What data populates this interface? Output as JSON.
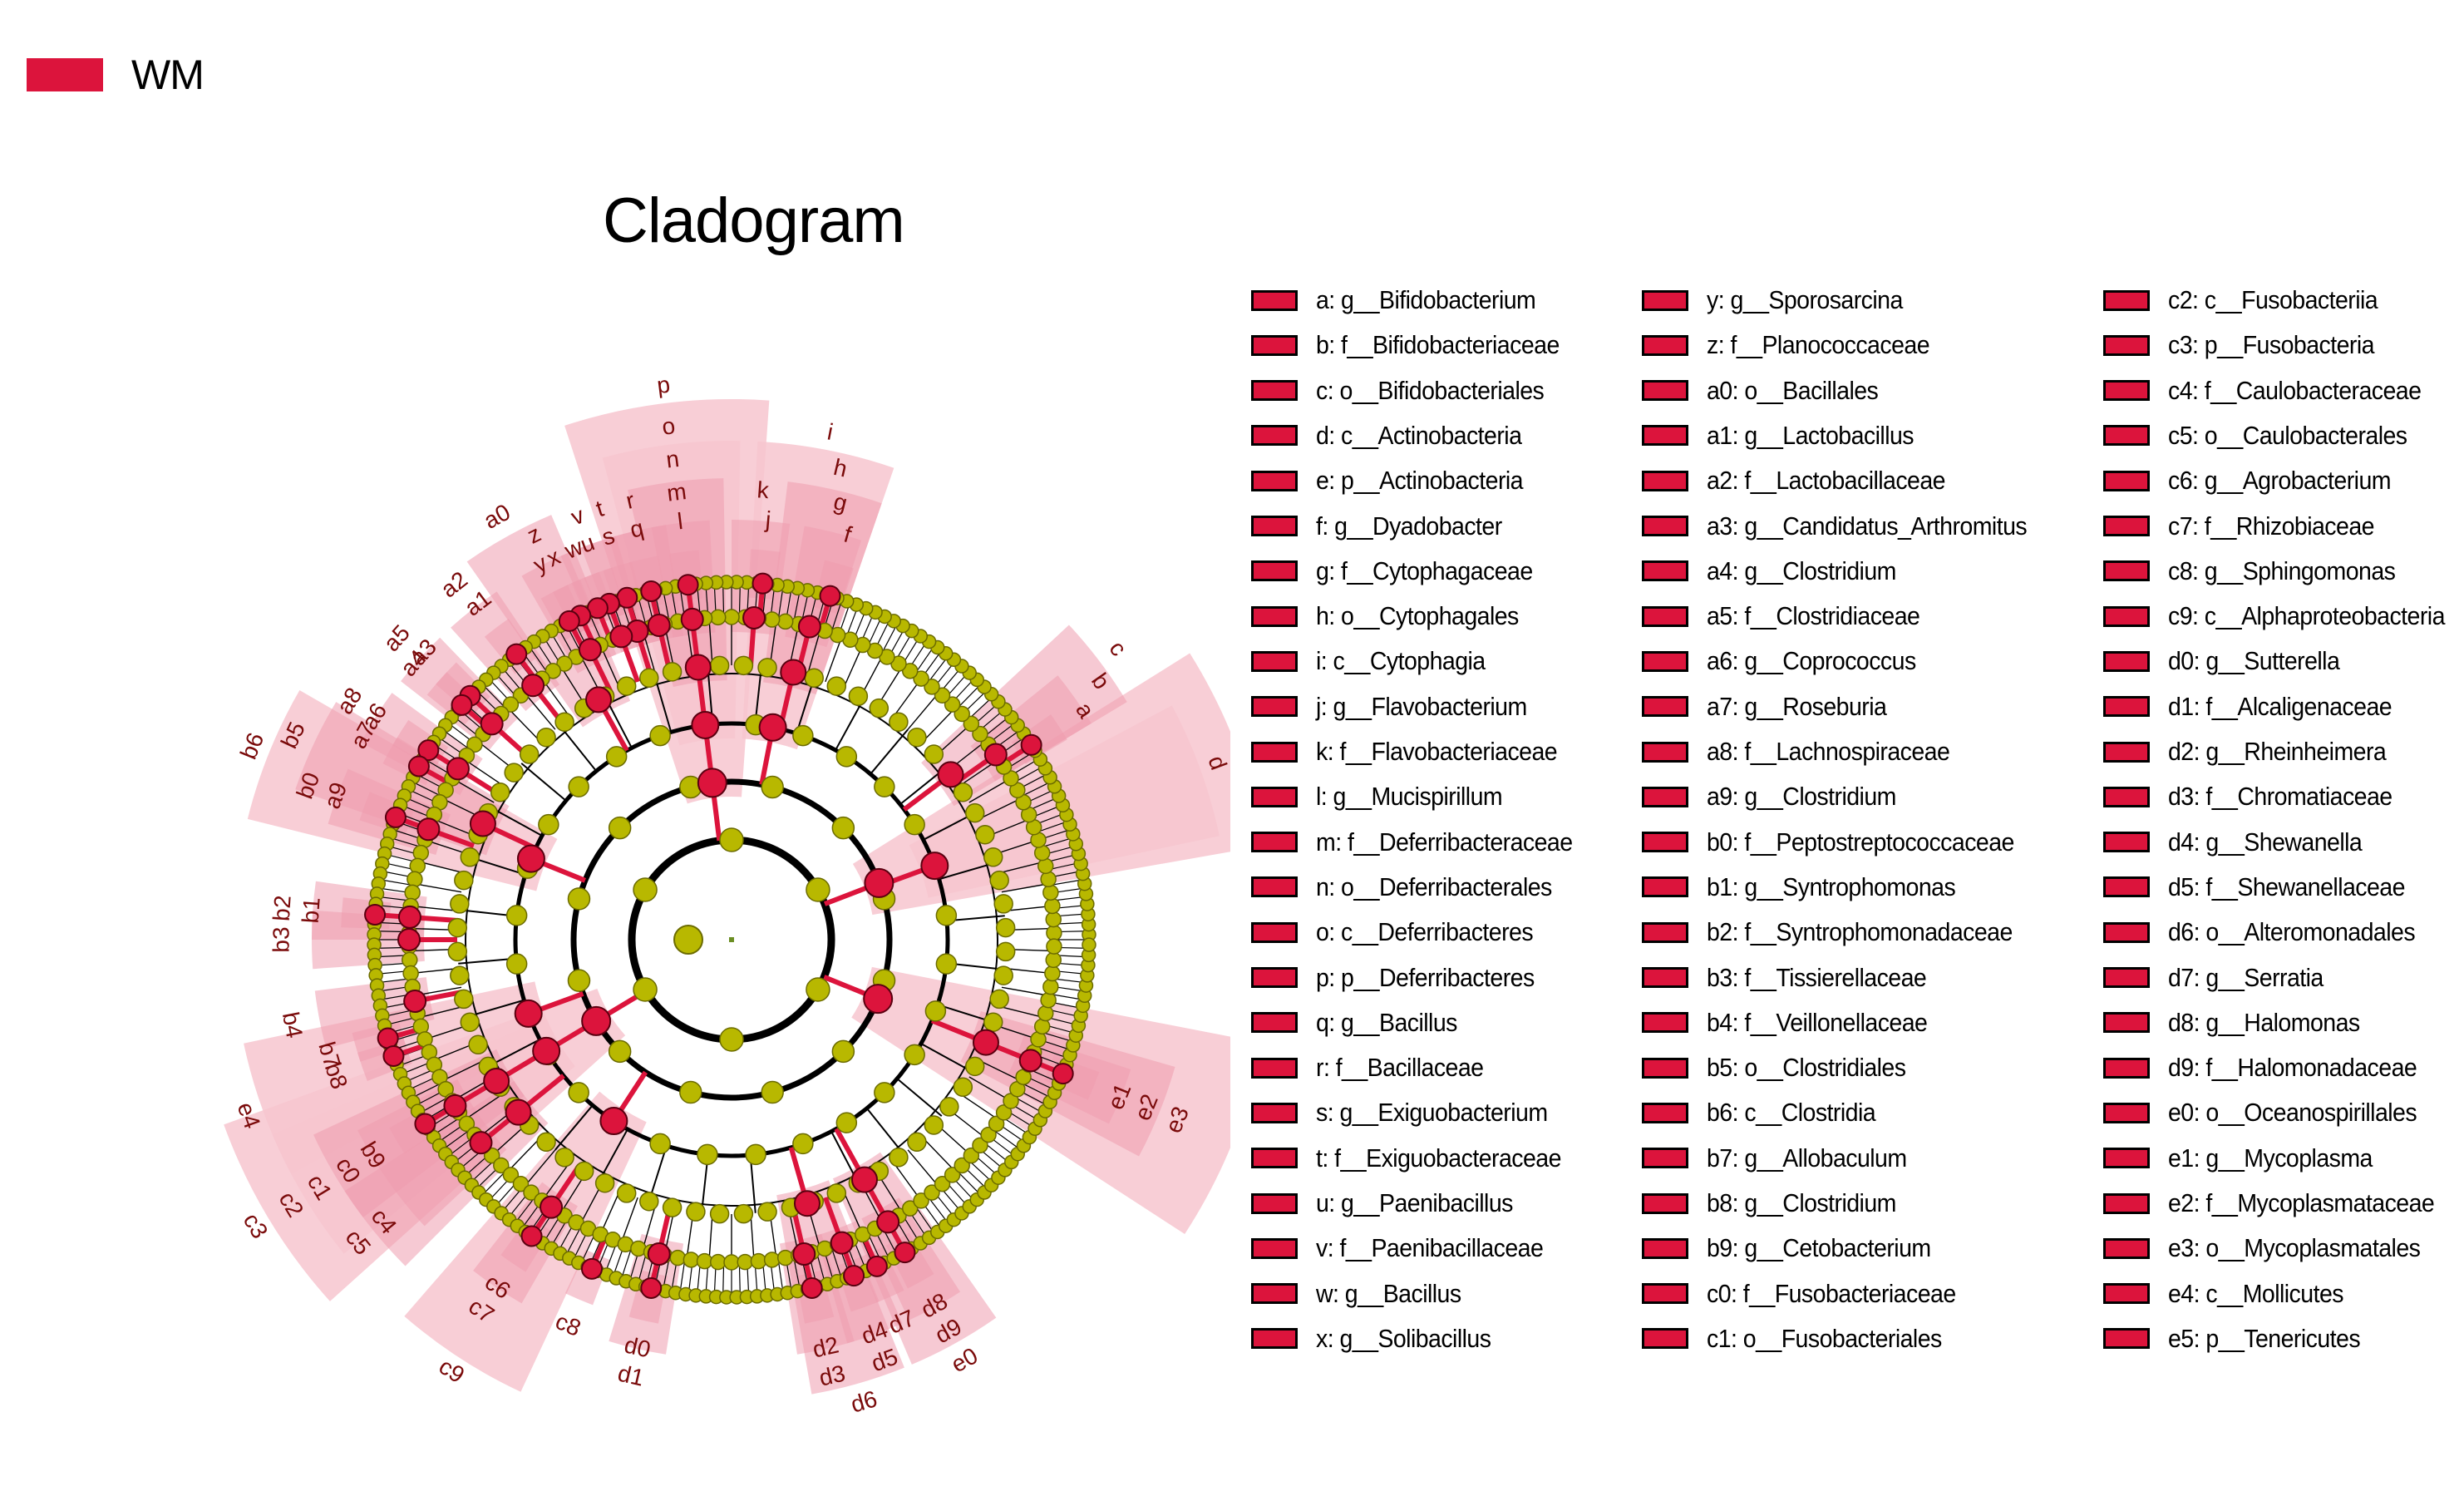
{
  "legend_group": {
    "label": "WM",
    "color": "#DC143C"
  },
  "title": "Cladogram",
  "colors": {
    "enriched": "#DC143C",
    "neutral": "#B8B800",
    "neutral_stroke": "#6B6B00",
    "sector_light": "#F7C6CF",
    "sector_mid": "#EE9DAE",
    "label_text": "#7A0A0A"
  },
  "legend_items": [
    "a: g__Bifidobacterium",
    "b: f__Bifidobacteriaceae",
    "c: o__Bifidobacteriales",
    "d: c__Actinobacteria",
    "e: p__Actinobacteria",
    "f: g__Dyadobacter",
    "g: f__Cytophagaceae",
    "h: o__Cytophagales",
    "i: c__Cytophagia",
    "j: g__Flavobacterium",
    "k: f__Flavobacteriaceae",
    "l: g__Mucispirillum",
    "m: f__Deferribacteraceae",
    "n: o__Deferribacterales",
    "o: c__Deferribacteres",
    "p: p__Deferribacteres",
    "q: g__Bacillus",
    "r: f__Bacillaceae",
    "s: g__Exiguobacterium",
    "t: f__Exiguobacteraceae",
    "u: g__Paenibacillus",
    "v: f__Paenibacillaceae",
    "w: g__Bacillus",
    "x: g__Solibacillus",
    "y: g__Sporosarcina",
    "z: f__Planococcaceae",
    "a0: o__Bacillales",
    "a1: g__Lactobacillus",
    "a2: f__Lactobacillaceae",
    "a3: g__Candidatus_Arthromitus",
    "a4: g__Clostridium",
    "a5: f__Clostridiaceae",
    "a6: g__Coprococcus",
    "a7: g__Roseburia",
    "a8: f__Lachnospiraceae",
    "a9: g__Clostridium",
    "b0: f__Peptostreptococcaceae",
    "b1: g__Syntrophomonas",
    "b2: f__Syntrophomonadaceae",
    "b3: f__Tissierellaceae",
    "b4: f__Veillonellaceae",
    "b5: o__Clostridiales",
    "b6: c__Clostridia",
    "b7: g__Allobaculum",
    "b8: g__Clostridium",
    "b9: g__Cetobacterium",
    "c0: f__Fusobacteriaceae",
    "c1: o__Fusobacteriales",
    "c2: c__Fusobacteriia",
    "c3: p__Fusobacteria",
    "c4: f__Caulobacteraceae",
    "c5: o__Caulobacterales",
    "c6: g__Agrobacterium",
    "c7: f__Rhizobiaceae",
    "c8: g__Sphingomonas",
    "c9: c__Alphaproteobacteria",
    "d0: g__Sutterella",
    "d1: f__Alcaligenaceae",
    "d2: g__Rheinheimera",
    "d3: f__Chromatiaceae",
    "d4: g__Shewanella",
    "d5: f__Shewanellaceae",
    "d6: o__Alteromonadales",
    "d7: g__Serratia",
    "d8: g__Halomonas",
    "d9: f__Halomonadaceae",
    "e0: o__Oceanospirillales",
    "e1: g__Mycoplasma",
    "e2: f__Mycoplasmataceae",
    "e3: o__Mycoplasmatales",
    "e4: c__Mollicutes",
    "e5: p__Tenericutes"
  ],
  "cladogram": {
    "clades": [
      {
        "label": "e",
        "level": 2,
        "angle": 21
      },
      {
        "label": "d",
        "level": 3,
        "angle": 20
      },
      {
        "label": "c",
        "level": 4,
        "angle": 37
      },
      {
        "label": "b",
        "level": 5,
        "angle": 35
      },
      {
        "label": "a",
        "level": 6,
        "angle": 33
      },
      {
        "label": "i",
        "level": 3,
        "angle": 79
      },
      {
        "label": "h",
        "level": 4,
        "angle": 77
      },
      {
        "label": "g",
        "level": 5,
        "angle": 76
      },
      {
        "label": "f",
        "level": 6,
        "angle": 74
      },
      {
        "label": "k",
        "level": 5,
        "angle": 86
      },
      {
        "label": "j",
        "level": 6,
        "angle": 85
      },
      {
        "label": "p",
        "level": 2,
        "angle": 97
      },
      {
        "label": "o",
        "level": 3,
        "angle": 97
      },
      {
        "label": "n",
        "level": 4,
        "angle": 97
      },
      {
        "label": "m",
        "level": 5,
        "angle": 97
      },
      {
        "label": "l",
        "level": 6,
        "angle": 97
      },
      {
        "label": "a0",
        "level": 4,
        "angle": 119
      },
      {
        "label": "r",
        "level": 5,
        "angle": 103
      },
      {
        "label": "q",
        "level": 6,
        "angle": 103
      },
      {
        "label": "t",
        "level": 5,
        "angle": 107
      },
      {
        "label": "s",
        "level": 6,
        "angle": 107
      },
      {
        "label": "v",
        "level": 5,
        "angle": 110
      },
      {
        "label": "u",
        "level": 6,
        "angle": 110
      },
      {
        "label": "w",
        "level": 6,
        "angle": 112
      },
      {
        "label": "z",
        "level": 5,
        "angle": 116
      },
      {
        "label": "x",
        "level": 6,
        "angle": 115
      },
      {
        "label": "y",
        "level": 6,
        "angle": 117
      },
      {
        "label": "a2",
        "level": 5,
        "angle": 128
      },
      {
        "label": "a1",
        "level": 6,
        "angle": 127
      },
      {
        "label": "b6",
        "level": 3,
        "angle": 158
      },
      {
        "label": "b5",
        "level": 4,
        "angle": 155
      },
      {
        "label": "a5",
        "level": 5,
        "angle": 138
      },
      {
        "label": "a3",
        "level": 6,
        "angle": 137
      },
      {
        "label": "a4",
        "level": 6,
        "angle": 139
      },
      {
        "label": "a8",
        "level": 5,
        "angle": 148
      },
      {
        "label": "a6",
        "level": 6,
        "angle": 148
      },
      {
        "label": "a7",
        "level": 6,
        "angle": 151
      },
      {
        "label": "b0",
        "level": 5,
        "angle": 160
      },
      {
        "label": "a9",
        "level": 6,
        "angle": 160
      },
      {
        "label": "b2",
        "level": 5,
        "angle": 176
      },
      {
        "label": "b1",
        "level": 6,
        "angle": 176
      },
      {
        "label": "b3",
        "level": 5,
        "angle": 180
      },
      {
        "label": "b4",
        "level": 5,
        "angle": 191
      },
      {
        "label": "e4",
        "level": 3,
        "angle": 200
      },
      {
        "label": "b7",
        "level": 6,
        "angle": 196
      },
      {
        "label": "b8",
        "level": 6,
        "angle": 199
      },
      {
        "label": "c3",
        "level": 2,
        "angle": 211
      },
      {
        "label": "c2",
        "level": 3,
        "angle": 211
      },
      {
        "label": "c1",
        "level": 4,
        "angle": 211
      },
      {
        "label": "c0",
        "level": 5,
        "angle": 211
      },
      {
        "label": "b9",
        "level": 6,
        "angle": 211
      },
      {
        "label": "c5",
        "level": 4,
        "angle": 219
      },
      {
        "label": "c4",
        "level": 5,
        "angle": 219
      },
      {
        "label": "c9",
        "level": 3,
        "angle": 237
      },
      {
        "label": "c7",
        "level": 5,
        "angle": 236
      },
      {
        "label": "c6",
        "level": 6,
        "angle": 236
      },
      {
        "label": "c8",
        "level": 6,
        "angle": 247
      },
      {
        "label": "d1",
        "level": 5,
        "angle": 257
      },
      {
        "label": "d0",
        "level": 6,
        "angle": 257
      },
      {
        "label": "d6",
        "level": 4,
        "angle": 286
      },
      {
        "label": "d3",
        "level": 5,
        "angle": 283
      },
      {
        "label": "d2",
        "level": 6,
        "angle": 283
      },
      {
        "label": "d5",
        "level": 5,
        "angle": 290
      },
      {
        "label": "d4",
        "level": 6,
        "angle": 290
      },
      {
        "label": "d7",
        "level": 6,
        "angle": 294
      },
      {
        "label": "e0",
        "level": 4,
        "angle": 299
      },
      {
        "label": "d9",
        "level": 5,
        "angle": 299
      },
      {
        "label": "d8",
        "level": 6,
        "angle": 299
      },
      {
        "label": "e5",
        "level": 2,
        "angle": 338
      },
      {
        "label": "e3",
        "level": 4,
        "angle": 338
      },
      {
        "label": "e2",
        "level": 5,
        "angle": 338
      },
      {
        "label": "e1",
        "level": 6,
        "angle": 338
      }
    ]
  }
}
